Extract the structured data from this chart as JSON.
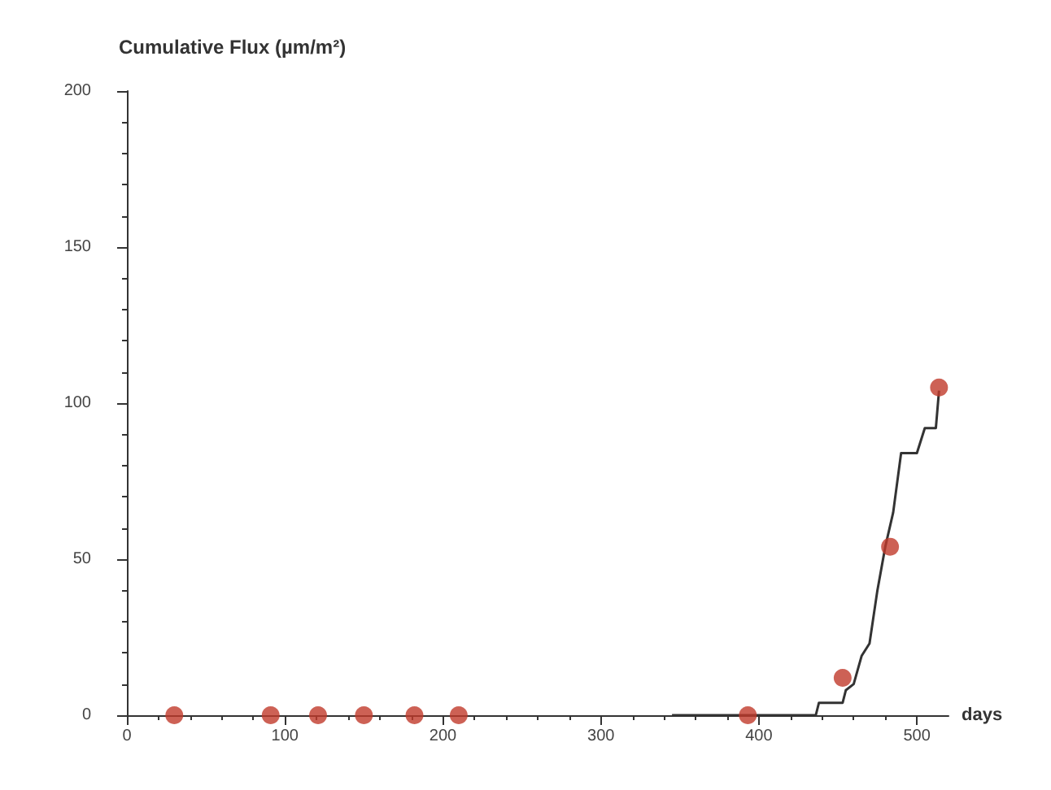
{
  "chart_data": {
    "type": "scatter",
    "title": "Cumulative Flux (µm/m²)",
    "xlabel": "days",
    "xlim": [
      0,
      520
    ],
    "xticks": [
      0,
      100,
      200,
      300,
      400,
      500
    ],
    "ylim": [
      0,
      200
    ],
    "yticks": [
      0,
      50,
      100,
      150,
      200
    ],
    "grid": false,
    "series": [
      {
        "type": "line",
        "marker": "none",
        "color": "#333333",
        "x": [
          345,
          436,
          438,
          453,
          455,
          460,
          465,
          470,
          475,
          480,
          485,
          490,
          500,
          505,
          512,
          514
        ],
        "values": [
          0,
          0,
          4,
          4,
          8,
          10,
          19,
          23,
          40,
          54,
          65,
          84,
          84,
          92,
          92,
          104
        ]
      },
      {
        "marker": "circle",
        "color": "#c0392b",
        "x": [
          30,
          91,
          121,
          150,
          182,
          210,
          393,
          453,
          483,
          514
        ],
        "values": [
          0,
          0,
          0,
          0,
          0,
          0,
          0,
          12,
          54,
          105
        ]
      }
    ]
  }
}
